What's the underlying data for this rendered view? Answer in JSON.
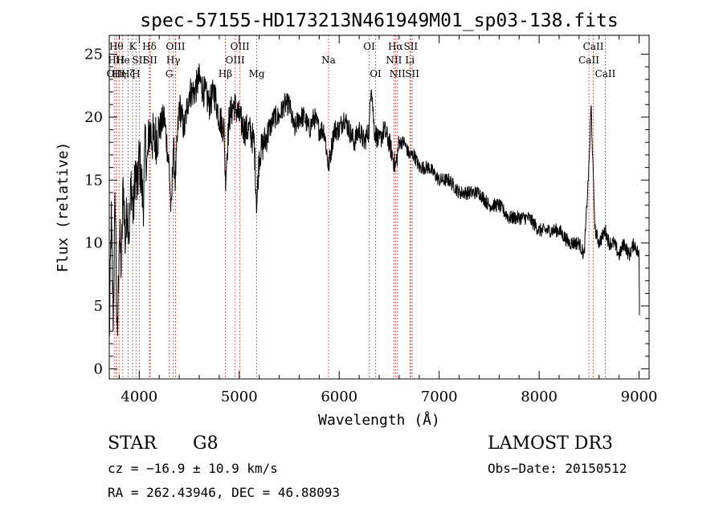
{
  "chart_data": {
    "type": "line",
    "title": "spec-57155-HD173213N461949M01_sp03-138.fits",
    "xlabel": "Wavelength (Å)",
    "ylabel": "Flux (relative)",
    "xlim": [
      3700,
      9100
    ],
    "ylim": [
      -0.8,
      26.5
    ],
    "xticks": [
      4000,
      5000,
      6000,
      7000,
      8000,
      9000
    ],
    "xtick_labels": [
      "4000",
      "5000",
      "6000",
      "7000",
      "8000",
      "9000"
    ],
    "yticks": [
      0,
      5,
      10,
      15,
      20,
      25
    ],
    "ytick_labels": [
      "0",
      "5",
      "10",
      "15",
      "20",
      "25"
    ],
    "grid": false,
    "series": [
      {
        "color": "#000000",
        "x": [
          3700,
          3720,
          3740,
          3760,
          3780,
          3800,
          3820,
          3840,
          3860,
          3880,
          3900,
          3920,
          3940,
          3960,
          3980,
          4000,
          4020,
          4040,
          4060,
          4080,
          4100,
          4150,
          4200,
          4250,
          4300,
          4320,
          4340,
          4360,
          4400,
          4450,
          4500,
          4550,
          4600,
          4650,
          4700,
          4750,
          4800,
          4850,
          4861,
          4900,
          4950,
          5000,
          5050,
          5100,
          5150,
          5175,
          5200,
          5250,
          5300,
          5350,
          5400,
          5450,
          5500,
          5550,
          5600,
          5650,
          5700,
          5750,
          5800,
          5850,
          5893,
          5950,
          6000,
          6050,
          6100,
          6150,
          6200,
          6250,
          6300,
          6320,
          6350,
          6400,
          6450,
          6500,
          6563,
          6600,
          6650,
          6700,
          6750,
          6800,
          6900,
          7000,
          7100,
          7200,
          7300,
          7400,
          7500,
          7600,
          7700,
          7800,
          7900,
          8000,
          8100,
          8200,
          8300,
          8400,
          8450,
          8498,
          8520,
          8542,
          8560,
          8600,
          8662,
          8700,
          8750,
          8800,
          8850,
          8900,
          8950,
          9000,
          9005
        ],
        "y": [
          2,
          12,
          4,
          14,
          1,
          11,
          8,
          15,
          10,
          13,
          11,
          15,
          12,
          16,
          14,
          17,
          15,
          13,
          18,
          16,
          19,
          18,
          19,
          20,
          16,
          12,
          18,
          15,
          21,
          19,
          22,
          22,
          23,
          22,
          21,
          22,
          20,
          19,
          15,
          20,
          21,
          20,
          19,
          19,
          18,
          13,
          17,
          18,
          19,
          20,
          20,
          21,
          21,
          19,
          20,
          20,
          19,
          20,
          19,
          19,
          16,
          19,
          19,
          20,
          19,
          18,
          19,
          18,
          19,
          23,
          19,
          18,
          19,
          18,
          16,
          18,
          18,
          17,
          17,
          16,
          16,
          15,
          15,
          14,
          14,
          14,
          13,
          13,
          12,
          12,
          12,
          11,
          11,
          11,
          10,
          10,
          9,
          16,
          21,
          15,
          11,
          10,
          11,
          10,
          10,
          9,
          10,
          9,
          10,
          9,
          3
        ]
      }
    ],
    "line_markers": [
      {
        "x": 3750,
        "label": "OII",
        "row": 2
      },
      {
        "x": 3771,
        "label": "Hθ",
        "row": 0
      },
      {
        "x": 3771,
        "label": "HH",
        "row": 1
      },
      {
        "x": 3798,
        "label": "Hη",
        "row": 2
      },
      {
        "x": 3835,
        "label": "He",
        "row": 1
      },
      {
        "x": 3889,
        "label": "Hζ",
        "row": 2
      },
      {
        "x": 3934,
        "label": "K",
        "row": 0
      },
      {
        "x": 3968,
        "label": "H",
        "row": 2
      },
      {
        "x": 4000,
        "label": "SII",
        "row": 1
      },
      {
        "x": 4102,
        "label": "Hδ",
        "row": 0
      },
      {
        "x": 4110,
        "label": "SII",
        "row": 1
      },
      {
        "x": 4300,
        "label": "G",
        "row": 2
      },
      {
        "x": 4340,
        "label": "Hγ",
        "row": 1
      },
      {
        "x": 4363,
        "label": "OIII",
        "row": 0
      },
      {
        "x": 4861,
        "label": "Hβ",
        "row": 2
      },
      {
        "x": 4959,
        "label": "OIII",
        "row": 1
      },
      {
        "x": 5007,
        "label": "OIII",
        "row": 0
      },
      {
        "x": 5175,
        "label": "Mg",
        "row": 2
      },
      {
        "x": 5893,
        "label": "Na",
        "row": 1
      },
      {
        "x": 6300,
        "label": "OI",
        "row": 0
      },
      {
        "x": 6364,
        "label": "OI",
        "row": 2
      },
      {
        "x": 6548,
        "label": "NII",
        "row": 1
      },
      {
        "x": 6563,
        "label": "Hα",
        "row": 0
      },
      {
        "x": 6583,
        "label": "NII",
        "row": 2
      },
      {
        "x": 6708,
        "label": "Li",
        "row": 1
      },
      {
        "x": 6716,
        "label": "SII",
        "row": 0
      },
      {
        "x": 6731,
        "label": "SII",
        "row": 2
      },
      {
        "x": 8498,
        "label": "CaII",
        "row": 1
      },
      {
        "x": 8542,
        "label": "CaII",
        "row": 0
      },
      {
        "x": 8662,
        "label": "CaII",
        "row": 2
      }
    ]
  },
  "info": {
    "object_class": "STAR",
    "subclass": "G8",
    "survey": "LAMOST DR3",
    "cz": "cz = −16.9 ± 10.9 km/s",
    "obs_date": "Obs−Date: 20150512",
    "coords": "RA = 262.43946, DEC =  46.88093"
  }
}
